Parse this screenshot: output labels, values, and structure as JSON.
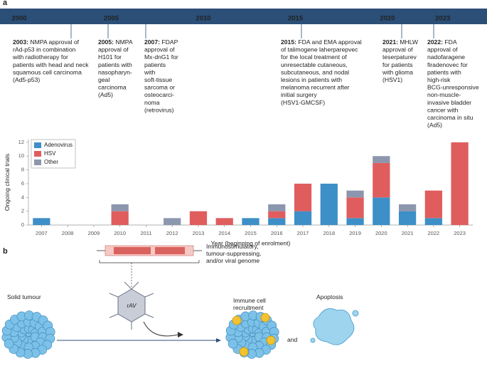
{
  "panel_labels": [
    "a",
    "b"
  ],
  "timeline": {
    "years": [
      2000,
      2005,
      2010,
      2015,
      2020,
      2023
    ],
    "events": [
      {
        "year": "2003:",
        "lines": [
          "NMPA approval of",
          "rAd-p53 in combination",
          "with radiotherapy for",
          "patients with head and neck",
          "squamous cell carcinoma",
          "(Ad5-p53)"
        ]
      },
      {
        "year": "2005:",
        "lines": [
          "NMPA",
          "approval of",
          "H101 for",
          "patients with",
          "nasopharyn-",
          "geal",
          "carcinoma",
          "(Ad5)"
        ]
      },
      {
        "year": "2007:",
        "lines": [
          "FDAP",
          "approval of",
          "Mx-dnG1 for",
          "patients",
          "with",
          "soft-tissue",
          "sarcoma or",
          "osteocarci-",
          "noma",
          "(retrovirus)"
        ]
      },
      {
        "year": "2015:",
        "lines": [
          "FDA and EMA approval",
          "of talimogene laherparepvec",
          "for the local treatment of",
          "unresectable cutaneous,",
          "subcutaneous, and nodal",
          "lesions in patients with",
          "melanoma recurrent after",
          "initial surgery",
          "(HSV1-GMCSF)"
        ]
      },
      {
        "year": "2021:",
        "lines": [
          "MHLW",
          "approval of",
          "teserpaturev",
          "for patients",
          "with glioma",
          "(HSV1)"
        ]
      },
      {
        "year": "2022:",
        "lines": [
          "FDA",
          "approval of",
          "nadofaragene",
          "firadenovec for",
          "patients with",
          "high-risk",
          "BCG-unresponsive",
          "non-muscle-",
          "invasive bladder",
          "cancer with",
          "carcinoma in situ",
          "(Ad5)"
        ]
      }
    ]
  },
  "chart_data": {
    "type": "stacked_bar",
    "x_label": "Year (beginning of enrolment)",
    "y_label": "Ongoing clinical trials",
    "categories": [
      "2007",
      "2008",
      "2009",
      "2010",
      "2011",
      "2012",
      "2013",
      "2014",
      "2015",
      "2016",
      "2017",
      "2018",
      "2019",
      "2020",
      "2021",
      "2022",
      "2023"
    ],
    "series": [
      {
        "name": "Adenovirus",
        "color": "#3d8fc8",
        "values": [
          1,
          0,
          0,
          0,
          0,
          0,
          0,
          0,
          1,
          1,
          2,
          6,
          1,
          4,
          2,
          1,
          0
        ]
      },
      {
        "name": "HSV",
        "color": "#e05d5d",
        "values": [
          0,
          0,
          0,
          2,
          0,
          0,
          2,
          1,
          0,
          1,
          4,
          0,
          3,
          5,
          0,
          4,
          12
        ]
      },
      {
        "name": "Other",
        "color": "#8c96ad",
        "values": [
          0,
          0,
          0,
          1,
          0,
          1,
          0,
          0,
          0,
          1,
          0,
          0,
          1,
          1,
          1,
          0,
          0
        ]
      }
    ],
    "ylim": [
      0,
      12.4
    ],
    "yticks": [
      0,
      2,
      4,
      6,
      8,
      10,
      12
    ],
    "legend": "top-left",
    "grid": false
  },
  "diagram": {
    "genome_label": [
      "Immunostimulatory,",
      "tumour-suppressing,",
      "and/or viral genome"
    ],
    "virus_label": "rAV",
    "tumour_label": "Solid tumour",
    "recruitment_label": [
      "Immune cell",
      "recruitment"
    ],
    "connector": "and",
    "apoptosis_label": "Apoptosis"
  }
}
